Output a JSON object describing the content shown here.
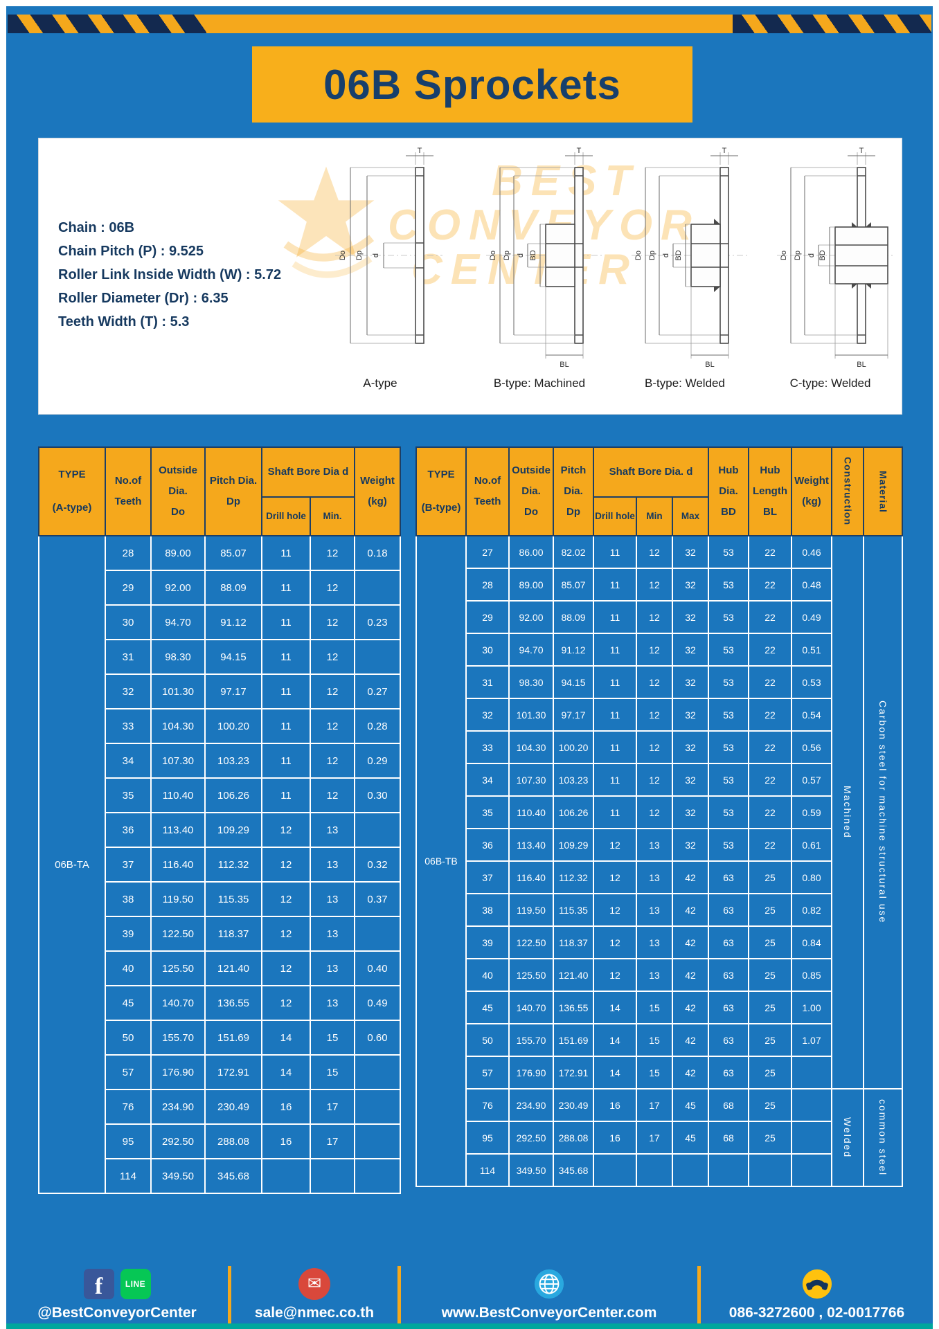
{
  "page": {
    "title": "06B Sprockets"
  },
  "colors": {
    "background_blue": "#1b76bd",
    "accent_yellow": "#f5a81c",
    "navy_text": "#16395f",
    "teal_strip": "#00a79d"
  },
  "specs": {
    "lines": [
      "Chain : 06B",
      "Chain Pitch (P) : 9.525",
      "Roller Link Inside Width (W) : 5.72",
      "Roller Diameter (Dr) : 6.35",
      "Teeth Width (T) : 5.3"
    ]
  },
  "diagram": {
    "watermark": {
      "line1": "BEST",
      "line2": "CONVEYOR",
      "line3": "CENTER"
    },
    "figures": [
      {
        "label": "A-type",
        "dims": {
          "t": "T",
          "do": "Do",
          "dp": "Dp",
          "d": "d"
        }
      },
      {
        "label": "B-type: Machined",
        "dims": {
          "t": "T",
          "do": "Do",
          "dp": "Dp",
          "d": "d",
          "bd": "BD",
          "bl": "BL"
        }
      },
      {
        "label": "B-type: Welded",
        "dims": {
          "t": "T",
          "do": "Do",
          "dp": "Dp",
          "d": "d",
          "bd": "BD",
          "bl": "BL"
        }
      },
      {
        "label": "C-type: Welded",
        "dims": {
          "t": "T",
          "do": "Do",
          "dp": "Dp",
          "d": "d",
          "bd": "BD",
          "bl": "BL"
        }
      }
    ]
  },
  "table_a": {
    "header": {
      "type": "TYPE",
      "type_sub": "(A-type)",
      "teeth": "No.of\nTeeth",
      "outside": "Outside\nDia.\nDo",
      "pitch": "Pitch Dia.\nDp",
      "shaft_group": "Shaft Bore Dia d",
      "drill": "Drill hole",
      "min": "Min.",
      "weight": "Weight\n(kg)"
    },
    "type_value": "06B-TA",
    "rows": [
      [
        "28",
        "89.00",
        "85.07",
        "11",
        "12",
        "0.18"
      ],
      [
        "29",
        "92.00",
        "88.09",
        "11",
        "12",
        ""
      ],
      [
        "30",
        "94.70",
        "91.12",
        "11",
        "12",
        "0.23"
      ],
      [
        "31",
        "98.30",
        "94.15",
        "11",
        "12",
        ""
      ],
      [
        "32",
        "101.30",
        "97.17",
        "11",
        "12",
        "0.27"
      ],
      [
        "33",
        "104.30",
        "100.20",
        "11",
        "12",
        "0.28"
      ],
      [
        "34",
        "107.30",
        "103.23",
        "11",
        "12",
        "0.29"
      ],
      [
        "35",
        "110.40",
        "106.26",
        "11",
        "12",
        "0.30"
      ],
      [
        "36",
        "113.40",
        "109.29",
        "12",
        "13",
        ""
      ],
      [
        "37",
        "116.40",
        "112.32",
        "12",
        "13",
        "0.32"
      ],
      [
        "38",
        "119.50",
        "115.35",
        "12",
        "13",
        "0.37"
      ],
      [
        "39",
        "122.50",
        "118.37",
        "12",
        "13",
        ""
      ],
      [
        "40",
        "125.50",
        "121.40",
        "12",
        "13",
        "0.40"
      ],
      [
        "45",
        "140.70",
        "136.55",
        "12",
        "13",
        "0.49"
      ],
      [
        "50",
        "155.70",
        "151.69",
        "14",
        "15",
        "0.60"
      ],
      [
        "57",
        "176.90",
        "172.91",
        "14",
        "15",
        ""
      ],
      [
        "76",
        "234.90",
        "230.49",
        "16",
        "17",
        ""
      ],
      [
        "95",
        "292.50",
        "288.08",
        "16",
        "17",
        ""
      ],
      [
        "114",
        "349.50",
        "345.68",
        "",
        "",
        ""
      ]
    ]
  },
  "table_b": {
    "header": {
      "type": "TYPE",
      "type_sub": "(B-type)",
      "teeth": "No.of\nTeeth",
      "outside": "Outside\nDia.\nDo",
      "pitch": "Pitch\nDia.\nDp",
      "shaft_group": "Shaft Bore Dia. d",
      "drill": "Drill hole",
      "min": "Min",
      "max": "Max",
      "hub_dia": "Hub\nDia.\nBD",
      "hub_len": "Hub\nLength\nBL",
      "weight": "Weight\n(kg)",
      "construction": "Construction",
      "material": "Material"
    },
    "type_value": "06B-TB",
    "construction_groups": [
      {
        "label": "Machined",
        "span": 17
      },
      {
        "label": "Welded",
        "span": 3
      }
    ],
    "material_groups": [
      {
        "label": "Carbon steel for machine structural use",
        "span": 17
      },
      {
        "label": "common steel",
        "span": 3
      }
    ],
    "rows": [
      [
        "27",
        "86.00",
        "82.02",
        "11",
        "12",
        "32",
        "53",
        "22",
        "0.46"
      ],
      [
        "28",
        "89.00",
        "85.07",
        "11",
        "12",
        "32",
        "53",
        "22",
        "0.48"
      ],
      [
        "29",
        "92.00",
        "88.09",
        "11",
        "12",
        "32",
        "53",
        "22",
        "0.49"
      ],
      [
        "30",
        "94.70",
        "91.12",
        "11",
        "12",
        "32",
        "53",
        "22",
        "0.51"
      ],
      [
        "31",
        "98.30",
        "94.15",
        "11",
        "12",
        "32",
        "53",
        "22",
        "0.53"
      ],
      [
        "32",
        "101.30",
        "97.17",
        "11",
        "12",
        "32",
        "53",
        "22",
        "0.54"
      ],
      [
        "33",
        "104.30",
        "100.20",
        "11",
        "12",
        "32",
        "53",
        "22",
        "0.56"
      ],
      [
        "34",
        "107.30",
        "103.23",
        "11",
        "12",
        "32",
        "53",
        "22",
        "0.57"
      ],
      [
        "35",
        "110.40",
        "106.26",
        "11",
        "12",
        "32",
        "53",
        "22",
        "0.59"
      ],
      [
        "36",
        "113.40",
        "109.29",
        "12",
        "13",
        "32",
        "53",
        "22",
        "0.61"
      ],
      [
        "37",
        "116.40",
        "112.32",
        "12",
        "13",
        "42",
        "63",
        "25",
        "0.80"
      ],
      [
        "38",
        "119.50",
        "115.35",
        "12",
        "13",
        "42",
        "63",
        "25",
        "0.82"
      ],
      [
        "39",
        "122.50",
        "118.37",
        "12",
        "13",
        "42",
        "63",
        "25",
        "0.84"
      ],
      [
        "40",
        "125.50",
        "121.40",
        "12",
        "13",
        "42",
        "63",
        "25",
        "0.85"
      ],
      [
        "45",
        "140.70",
        "136.55",
        "14",
        "15",
        "42",
        "63",
        "25",
        "1.00"
      ],
      [
        "50",
        "155.70",
        "151.69",
        "14",
        "15",
        "42",
        "63",
        "25",
        "1.07"
      ],
      [
        "57",
        "176.90",
        "172.91",
        "14",
        "15",
        "42",
        "63",
        "25",
        ""
      ],
      [
        "76",
        "234.90",
        "230.49",
        "16",
        "17",
        "45",
        "68",
        "25",
        ""
      ],
      [
        "95",
        "292.50",
        "288.08",
        "16",
        "17",
        "45",
        "68",
        "25",
        ""
      ],
      [
        "114",
        "349.50",
        "345.68",
        "",
        "",
        "",
        "",
        "",
        ""
      ]
    ]
  },
  "footer": {
    "sections": [
      {
        "icons": [
          "facebook",
          "line"
        ],
        "text": "@BestConveyorCenter"
      },
      {
        "icons": [
          "email"
        ],
        "text": "sale@nmec.co.th"
      },
      {
        "icons": [
          "globe"
        ],
        "text": "www.BestConveyorCenter.com"
      },
      {
        "icons": [
          "phone"
        ],
        "text": "086-3272600 , 02-0017766"
      }
    ]
  }
}
